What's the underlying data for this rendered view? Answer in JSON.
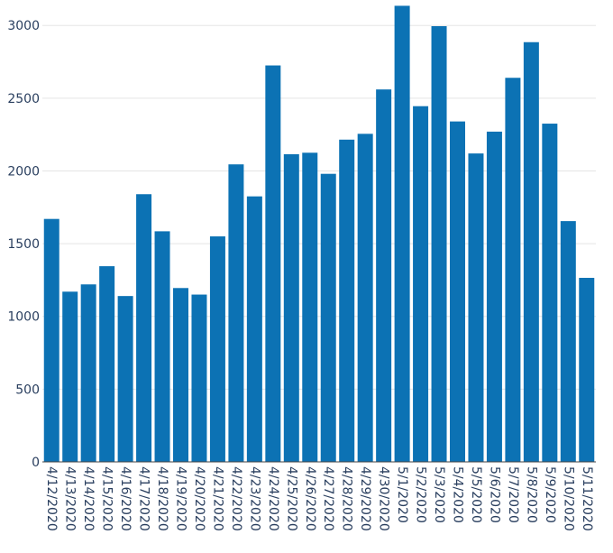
{
  "chart_data": {
    "type": "bar",
    "categories": [
      "4/12/2020",
      "4/13/2020",
      "4/14/2020",
      "4/15/2020",
      "4/16/2020",
      "4/17/2020",
      "4/18/2020",
      "4/19/2020",
      "4/20/2020",
      "4/21/2020",
      "4/22/2020",
      "4/23/2020",
      "4/24/2020",
      "4/25/2020",
      "4/26/2020",
      "4/27/2020",
      "4/28/2020",
      "4/29/2020",
      "4/30/2020",
      "5/1/2020",
      "5/2/2020",
      "5/3/2020",
      "5/4/2020",
      "5/5/2020",
      "5/6/2020",
      "5/7/2020",
      "5/8/2020",
      "5/9/2020",
      "5/10/2020",
      "5/11/2020"
    ],
    "values": [
      1670,
      1170,
      1220,
      1345,
      1140,
      1840,
      1585,
      1195,
      1150,
      1550,
      2045,
      1825,
      2725,
      2115,
      2125,
      1980,
      2215,
      2255,
      2560,
      3135,
      2445,
      2995,
      2340,
      2120,
      2270,
      2640,
      2885,
      2325,
      1655,
      1265
    ],
    "y_ticks": [
      0,
      500,
      1000,
      1500,
      2000,
      2500,
      3000
    ],
    "ylim": [
      0,
      3150
    ],
    "grid": true,
    "bar_color": "#0c72b4",
    "title": "",
    "xlabel": "",
    "ylabel": ""
  }
}
